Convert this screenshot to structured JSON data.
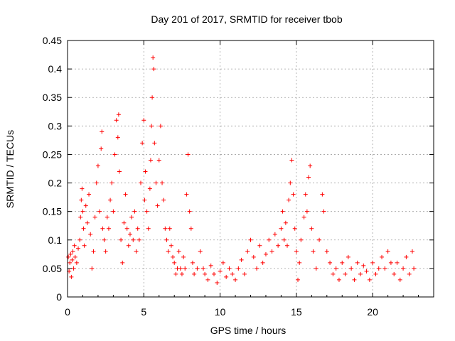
{
  "chart_data": {
    "type": "scatter",
    "title": "Day 201 of 2017, SRMTID for receiver tbob",
    "xlabel": "GPS time / hours",
    "ylabel": "SRMTID / TECUs",
    "xlim": [
      0,
      24
    ],
    "ylim": [
      0,
      0.45
    ],
    "grid": true,
    "x_ticks": [
      0,
      5,
      10,
      15,
      20
    ],
    "x_tick_labels": [
      "0",
      "5",
      "10",
      "15",
      "20"
    ],
    "y_ticks": [
      0,
      0.05,
      0.1,
      0.15,
      0.2,
      0.25,
      0.3,
      0.35,
      0.4,
      0.45
    ],
    "y_tick_labels": [
      "0",
      "0.05",
      "0.1",
      "0.15",
      "0.2",
      "0.25",
      "0.3",
      "0.35",
      "0.4",
      "0.45"
    ],
    "marker": "plus",
    "color": "#ff0000",
    "series": [
      {
        "name": "SRMTID",
        "points": [
          [
            0.05,
            0.07
          ],
          [
            0.1,
            0.045
          ],
          [
            0.15,
            0.06
          ],
          [
            0.2,
            0.075
          ],
          [
            0.25,
            0.035
          ],
          [
            0.3,
            0.065
          ],
          [
            0.35,
            0.08
          ],
          [
            0.4,
            0.05
          ],
          [
            0.45,
            0.09
          ],
          [
            0.5,
            0.07
          ],
          [
            0.6,
            0.06
          ],
          [
            0.7,
            0.085
          ],
          [
            0.8,
            0.1
          ],
          [
            0.85,
            0.14
          ],
          [
            0.9,
            0.17
          ],
          [
            0.95,
            0.19
          ],
          [
            1.0,
            0.15
          ],
          [
            1.05,
            0.12
          ],
          [
            1.1,
            0.09
          ],
          [
            1.2,
            0.16
          ],
          [
            1.3,
            0.13
          ],
          [
            1.4,
            0.18
          ],
          [
            1.5,
            0.11
          ],
          [
            1.6,
            0.05
          ],
          [
            1.7,
            0.08
          ],
          [
            1.8,
            0.14
          ],
          [
            1.9,
            0.2
          ],
          [
            2.0,
            0.23
          ],
          [
            2.1,
            0.15
          ],
          [
            2.2,
            0.26
          ],
          [
            2.25,
            0.29
          ],
          [
            2.3,
            0.12
          ],
          [
            2.4,
            0.1
          ],
          [
            2.5,
            0.08
          ],
          [
            2.6,
            0.14
          ],
          [
            2.7,
            0.12
          ],
          [
            2.8,
            0.17
          ],
          [
            2.9,
            0.2
          ],
          [
            3.0,
            0.15
          ],
          [
            3.1,
            0.25
          ],
          [
            3.2,
            0.31
          ],
          [
            3.3,
            0.28
          ],
          [
            3.35,
            0.32
          ],
          [
            3.4,
            0.22
          ],
          [
            3.5,
            0.1
          ],
          [
            3.6,
            0.06
          ],
          [
            3.7,
            0.13
          ],
          [
            3.8,
            0.18
          ],
          [
            3.9,
            0.12
          ],
          [
            4.0,
            0.09
          ],
          [
            4.1,
            0.11
          ],
          [
            4.2,
            0.14
          ],
          [
            4.3,
            0.1
          ],
          [
            4.4,
            0.15
          ],
          [
            4.5,
            0.08
          ],
          [
            4.6,
            0.12
          ],
          [
            4.7,
            0.1
          ],
          [
            4.8,
            0.2
          ],
          [
            4.9,
            0.27
          ],
          [
            5.0,
            0.31
          ],
          [
            5.05,
            0.17
          ],
          [
            5.1,
            0.22
          ],
          [
            5.2,
            0.15
          ],
          [
            5.3,
            0.12
          ],
          [
            5.4,
            0.19
          ],
          [
            5.45,
            0.24
          ],
          [
            5.5,
            0.3
          ],
          [
            5.55,
            0.35
          ],
          [
            5.6,
            0.42
          ],
          [
            5.65,
            0.4
          ],
          [
            5.7,
            0.27
          ],
          [
            5.8,
            0.2
          ],
          [
            5.9,
            0.16
          ],
          [
            6.0,
            0.24
          ],
          [
            6.1,
            0.3
          ],
          [
            6.2,
            0.2
          ],
          [
            6.3,
            0.17
          ],
          [
            6.4,
            0.12
          ],
          [
            6.5,
            0.1
          ],
          [
            6.6,
            0.08
          ],
          [
            6.7,
            0.12
          ],
          [
            6.8,
            0.09
          ],
          [
            6.9,
            0.07
          ],
          [
            7.0,
            0.06
          ],
          [
            7.1,
            0.04
          ],
          [
            7.2,
            0.05
          ],
          [
            7.3,
            0.08
          ],
          [
            7.4,
            0.05
          ],
          [
            7.5,
            0.04
          ],
          [
            7.6,
            0.07
          ],
          [
            7.7,
            0.05
          ],
          [
            7.8,
            0.18
          ],
          [
            7.9,
            0.25
          ],
          [
            8.0,
            0.15
          ],
          [
            8.1,
            0.12
          ],
          [
            8.2,
            0.06
          ],
          [
            8.3,
            0.04
          ],
          [
            8.5,
            0.05
          ],
          [
            8.7,
            0.08
          ],
          [
            8.9,
            0.05
          ],
          [
            9.0,
            0.04
          ],
          [
            9.2,
            0.03
          ],
          [
            9.4,
            0.055
          ],
          [
            9.6,
            0.04
          ],
          [
            9.8,
            0.025
          ],
          [
            10.0,
            0.045
          ],
          [
            10.2,
            0.06
          ],
          [
            10.4,
            0.035
          ],
          [
            10.6,
            0.05
          ],
          [
            10.8,
            0.04
          ],
          [
            11.0,
            0.03
          ],
          [
            11.2,
            0.05
          ],
          [
            11.4,
            0.065
          ],
          [
            11.6,
            0.04
          ],
          [
            11.8,
            0.08
          ],
          [
            12.0,
            0.1
          ],
          [
            12.2,
            0.07
          ],
          [
            12.4,
            0.05
          ],
          [
            12.6,
            0.09
          ],
          [
            12.8,
            0.06
          ],
          [
            13.0,
            0.075
          ],
          [
            13.2,
            0.1
          ],
          [
            13.4,
            0.08
          ],
          [
            13.6,
            0.11
          ],
          [
            13.8,
            0.09
          ],
          [
            14.0,
            0.12
          ],
          [
            14.1,
            0.15
          ],
          [
            14.2,
            0.1
          ],
          [
            14.3,
            0.13
          ],
          [
            14.4,
            0.09
          ],
          [
            14.5,
            0.17
          ],
          [
            14.6,
            0.2
          ],
          [
            14.7,
            0.24
          ],
          [
            14.8,
            0.18
          ],
          [
            14.9,
            0.12
          ],
          [
            15.0,
            0.08
          ],
          [
            15.1,
            0.03
          ],
          [
            15.2,
            0.06
          ],
          [
            15.3,
            0.1
          ],
          [
            15.5,
            0.14
          ],
          [
            15.6,
            0.18
          ],
          [
            15.7,
            0.15
          ],
          [
            15.8,
            0.21
          ],
          [
            15.9,
            0.23
          ],
          [
            16.0,
            0.12
          ],
          [
            16.1,
            0.08
          ],
          [
            16.3,
            0.05
          ],
          [
            16.5,
            0.1
          ],
          [
            16.7,
            0.18
          ],
          [
            16.8,
            0.15
          ],
          [
            17.0,
            0.08
          ],
          [
            17.2,
            0.06
          ],
          [
            17.4,
            0.04
          ],
          [
            17.6,
            0.05
          ],
          [
            17.8,
            0.03
          ],
          [
            18.0,
            0.06
          ],
          [
            18.2,
            0.04
          ],
          [
            18.4,
            0.07
          ],
          [
            18.6,
            0.05
          ],
          [
            18.8,
            0.03
          ],
          [
            19.0,
            0.06
          ],
          [
            19.2,
            0.04
          ],
          [
            19.4,
            0.055
          ],
          [
            19.6,
            0.045
          ],
          [
            19.8,
            0.03
          ],
          [
            20.0,
            0.06
          ],
          [
            20.2,
            0.04
          ],
          [
            20.4,
            0.05
          ],
          [
            20.6,
            0.07
          ],
          [
            20.8,
            0.05
          ],
          [
            21.0,
            0.08
          ],
          [
            21.2,
            0.06
          ],
          [
            21.4,
            0.04
          ],
          [
            21.6,
            0.06
          ],
          [
            21.8,
            0.03
          ],
          [
            22.0,
            0.05
          ],
          [
            22.2,
            0.07
          ],
          [
            22.4,
            0.04
          ],
          [
            22.6,
            0.08
          ],
          [
            22.7,
            0.05
          ]
        ]
      }
    ]
  }
}
